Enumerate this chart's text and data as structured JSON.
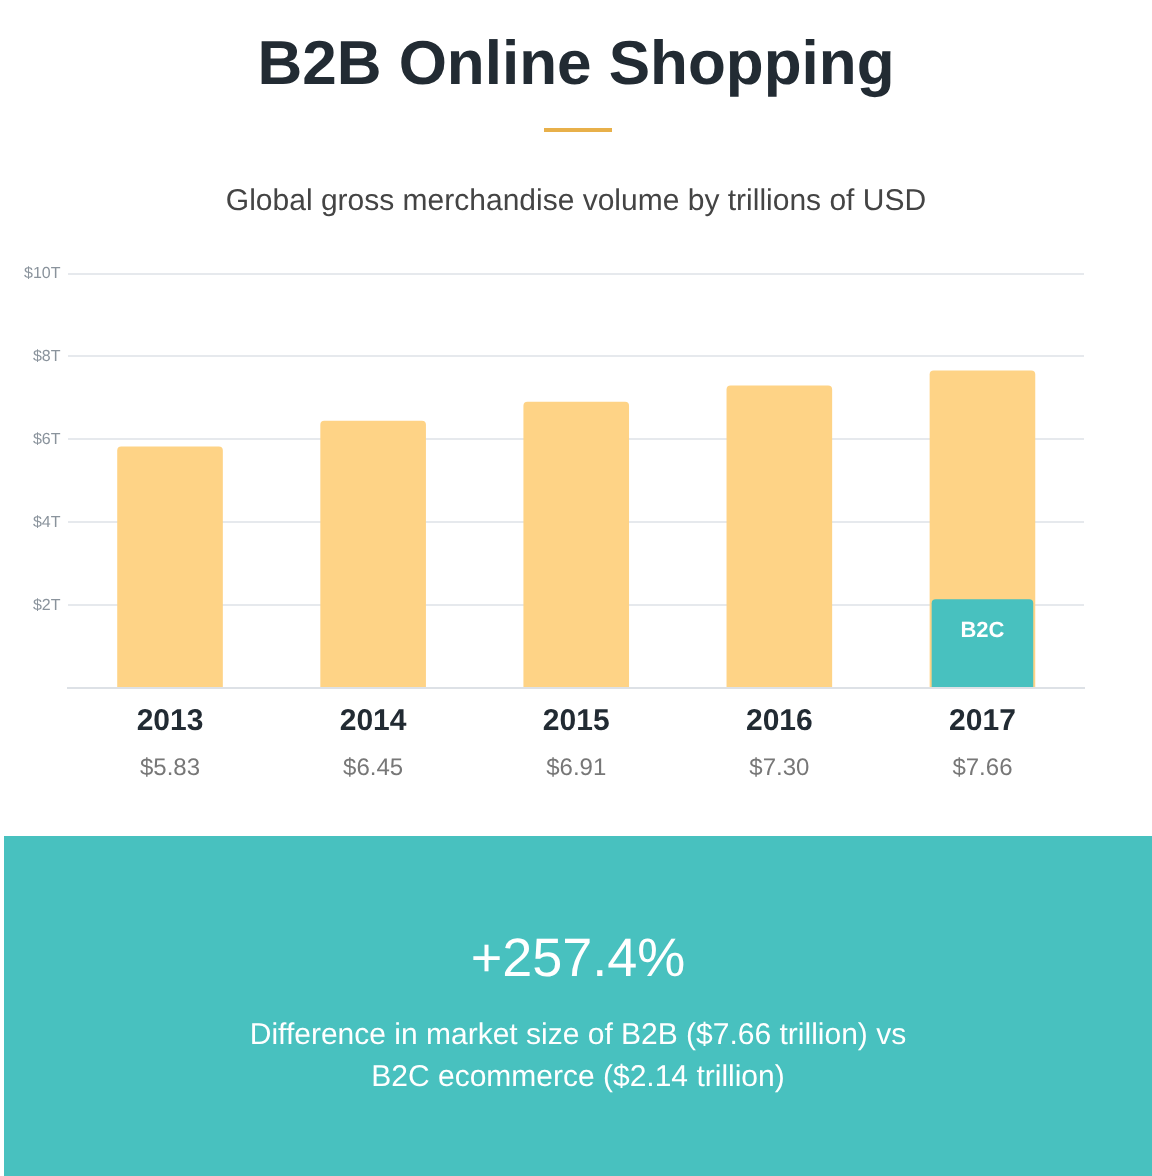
{
  "chart_data": {
    "type": "bar",
    "title": "B2B Online Shopping",
    "subtitle": "Global gross merchandise volume by trillions of USD",
    "categories": [
      "2013",
      "2014",
      "2015",
      "2016",
      "2017"
    ],
    "series": [
      {
        "color": "#fed386",
        "values": [
          5.83,
          6.45,
          6.91,
          7.3,
          7.66
        ],
        "value_labels": [
          "$5.83",
          "$6.45",
          "$6.91",
          "$7.30",
          "$7.66"
        ]
      },
      {
        "name": "B2C",
        "color": "#48c1bf",
        "values": [
          null,
          null,
          null,
          null,
          2.14
        ]
      }
    ],
    "ylim": [
      0,
      10
    ],
    "yticks": [
      {
        "value": 0,
        "label": null
      },
      {
        "value": 2,
        "label": "$2T"
      },
      {
        "value": 4,
        "label": "$4T"
      },
      {
        "value": 6,
        "label": "$6T"
      },
      {
        "value": 8,
        "label": "$8T"
      },
      {
        "value": 10,
        "label": "$10T"
      }
    ],
    "grid": "y",
    "legend": false,
    "annotations": [
      "+257.4%",
      "Difference in market size of B2B ($7.66 trillion) vs B2C ecommerce ($2.14 trillion)"
    ]
  }
}
